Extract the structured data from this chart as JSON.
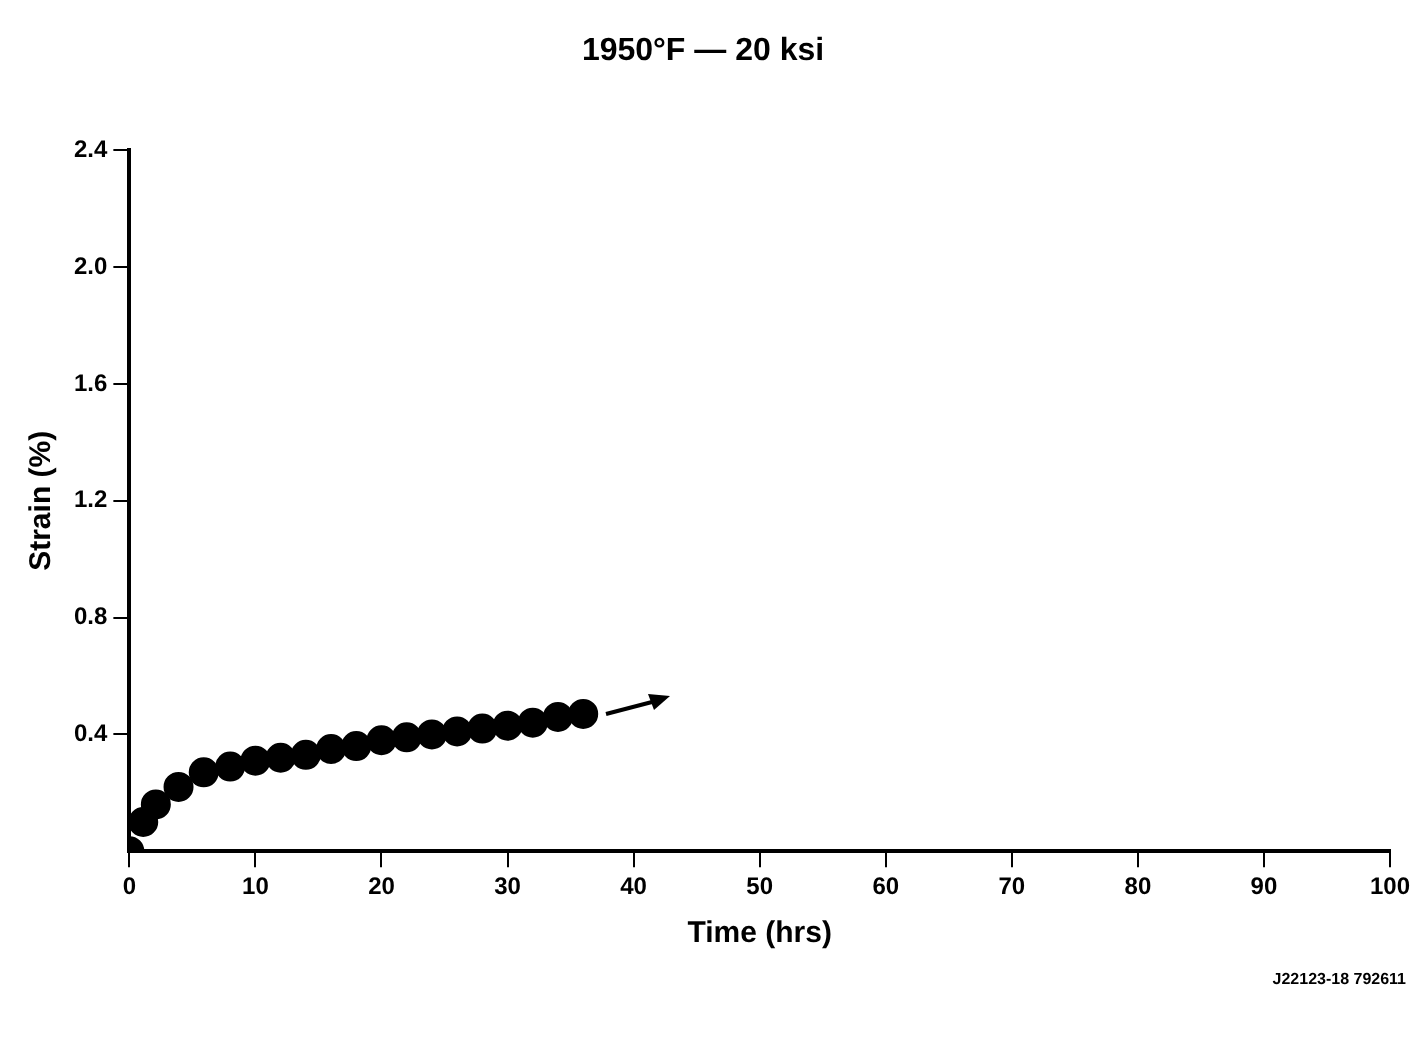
{
  "chart_data": {
    "type": "scatter",
    "title": "1950°F — 20 ksi",
    "xlabel": "Time (hrs)",
    "ylabel": "Strain (%)",
    "x": [
      0,
      1.1,
      2.1,
      3.9,
      5.9,
      8,
      10,
      12,
      14,
      16,
      18,
      20,
      22,
      24,
      26,
      28,
      30,
      32,
      34,
      36
    ],
    "series": [
      {
        "color": "#000000",
        "values": [
          0,
          0.1,
          0.16,
          0.22,
          0.27,
          0.29,
          0.31,
          0.32,
          0.33,
          0.35,
          0.36,
          0.38,
          0.39,
          0.4,
          0.41,
          0.42,
          0.43,
          0.44,
          0.46,
          0.47
        ]
      }
    ],
    "xlim": [
      0,
      100
    ],
    "xticks": [
      0,
      10,
      20,
      30,
      40,
      50,
      60,
      70,
      80,
      90,
      100
    ],
    "ylim": [
      0,
      2.4
    ],
    "yticks": [
      0.4,
      0.8,
      1.2,
      1.6,
      {
        "value": 2,
        "label": "2.0"
      },
      2.4
    ],
    "grid": false,
    "legend": false,
    "marker": "circle",
    "annotations": [
      "J22123-18 792611"
    ]
  }
}
